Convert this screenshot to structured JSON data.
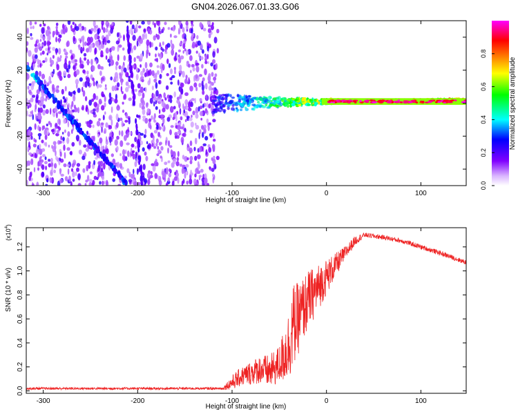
{
  "figure": {
    "title": "GN04.2026.067.01.33.G06",
    "width": 750,
    "height": 600
  },
  "chart_data": [
    {
      "type": "heatmap",
      "panel": "spectrogram",
      "xlabel": "Height of straight line (km)",
      "ylabel": "Frequency (Hz)",
      "xlim": [
        -318,
        148
      ],
      "ylim": [
        -50,
        50
      ],
      "xticks": [
        -300,
        -200,
        -100,
        0,
        100
      ],
      "xtick_labels": [
        "-300",
        "-200",
        "-100",
        "0",
        "100"
      ],
      "yticks": [
        -40,
        -20,
        0,
        20,
        40
      ],
      "ytick_labels": [
        "-40",
        "-20",
        "0",
        "20",
        "40"
      ],
      "colorbar": {
        "label": "Normalized spectral amplitude",
        "range": [
          0,
          1
        ],
        "ticks": [
          0.0,
          0.2,
          0.4,
          0.6,
          0.8
        ],
        "tick_labels": [
          "0.0",
          "0.2",
          "0.4",
          "0.6",
          "0.8"
        ],
        "colormap": [
          "#ffffff",
          "#8000ff",
          "#0000ff",
          "#00ffff",
          "#00ff00",
          "#ffff00",
          "#ff8000",
          "#ff0000",
          "#ff00ff"
        ]
      },
      "features": {
        "noise_region_x": [
          -318,
          -115
        ],
        "diagonal_trace": {
          "x": [
            -318,
            -210
          ],
          "y": [
            22,
            -50
          ]
        },
        "vertical_streak": {
          "x": [
            -212,
            -195
          ],
          "y": [
            50,
            -50
          ]
        },
        "carrier_line": {
          "x": [
            -120,
            148
          ],
          "y_start": 0,
          "y_end": 2,
          "amplitude_start": 0.3,
          "amplitude_end": 1.0
        }
      }
    },
    {
      "type": "line",
      "panel": "snr",
      "xlabel": "Height of straight line (km)",
      "ylabel": "SNR (10 * v/v)",
      "yscale_label": "(x10",
      "yscale_exp": "4",
      "xlim": [
        -318,
        148
      ],
      "ylim": [
        -0.02,
        1.36
      ],
      "xticks": [
        -300,
        -200,
        -100,
        0,
        100
      ],
      "xtick_labels": [
        "-300",
        "-200",
        "-100",
        "0",
        "100"
      ],
      "yticks": [
        0.0,
        0.2,
        0.4,
        0.6,
        0.8,
        1.0,
        1.2
      ],
      "ytick_labels": [
        "0.0",
        "0.2",
        "0.4",
        "0.6",
        "0.8",
        "1.0",
        "1.2"
      ],
      "series": [
        {
          "name": "SNR",
          "color": "#ee2222",
          "x": [
            -318,
            -110,
            -100,
            -90,
            -80,
            -70,
            -60,
            -50,
            -40,
            -35,
            -30,
            -20,
            -10,
            0,
            10,
            20,
            30,
            40,
            60,
            80,
            100,
            120,
            148
          ],
          "y": [
            0.02,
            0.02,
            0.07,
            0.12,
            0.15,
            0.18,
            0.16,
            0.22,
            0.38,
            0.55,
            0.6,
            0.75,
            0.85,
            0.95,
            1.05,
            1.15,
            1.25,
            1.3,
            1.28,
            1.25,
            1.2,
            1.15,
            1.07
          ],
          "noise_amplitude": [
            0.01,
            0.01,
            0.06,
            0.08,
            0.1,
            0.12,
            0.14,
            0.16,
            0.3,
            0.35,
            0.3,
            0.25,
            0.2,
            0.15,
            0.1,
            0.06,
            0.04,
            0.02,
            0.02,
            0.02,
            0.02,
            0.02,
            0.02
          ]
        }
      ]
    }
  ]
}
